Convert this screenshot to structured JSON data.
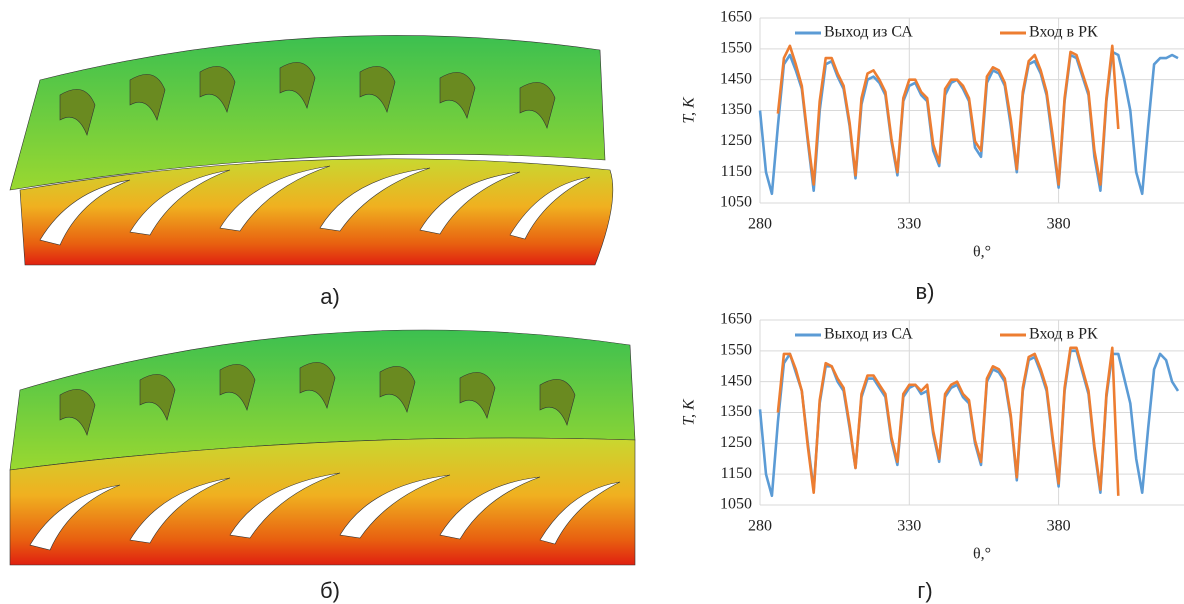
{
  "panel_labels": [
    "а)",
    "в)",
    "б)",
    "г)"
  ],
  "chart_data": [
    {
      "type": "line",
      "y_label": "T, К",
      "x_label": "θ,°",
      "x": [
        280,
        282,
        284,
        286,
        288,
        290,
        292,
        294,
        296,
        298,
        300,
        302,
        304,
        306,
        308,
        310,
        312,
        314,
        316,
        318,
        320,
        322,
        324,
        326,
        328,
        330,
        332,
        334,
        336,
        338,
        340,
        342,
        344,
        346,
        348,
        350,
        352,
        354,
        356,
        358,
        360,
        362,
        364,
        366,
        368,
        370,
        372,
        374,
        376,
        378,
        380,
        382,
        384,
        386,
        388,
        390,
        392,
        394,
        396,
        398,
        400,
        402,
        404,
        406,
        408,
        410,
        412,
        414,
        416,
        418,
        420
      ],
      "xlim": [
        280,
        422
      ],
      "xticks": [
        280,
        330,
        380
      ],
      "ylim": [
        1050,
        1650
      ],
      "yticks": [
        1050,
        1150,
        1250,
        1350,
        1450,
        1550,
        1650
      ],
      "grid": true,
      "legend": "top",
      "series": [
        {
          "name": "Выход из СА",
          "color": "#5b9bd5",
          "values": [
            1350,
            1150,
            1080,
            1300,
            1500,
            1530,
            1480,
            1420,
            1250,
            1090,
            1350,
            1500,
            1510,
            1460,
            1420,
            1300,
            1130,
            1370,
            1450,
            1460,
            1440,
            1400,
            1250,
            1140,
            1380,
            1430,
            1440,
            1400,
            1380,
            1220,
            1170,
            1400,
            1440,
            1450,
            1420,
            1380,
            1230,
            1200,
            1440,
            1480,
            1470,
            1430,
            1300,
            1150,
            1400,
            1500,
            1510,
            1470,
            1400,
            1250,
            1100,
            1380,
            1530,
            1520,
            1460,
            1400,
            1200,
            1090,
            1380,
            1540,
            1530,
            1450,
            1350,
            1150,
            1080,
            1300,
            1500,
            1520,
            1520,
            1530,
            1520
          ]
        },
        {
          "name": "Вход в РК",
          "color": "#ed7d31",
          "values": [
            null,
            null,
            null,
            1340,
            1520,
            1560,
            1500,
            1430,
            1260,
            1110,
            1380,
            1520,
            1520,
            1470,
            1430,
            1310,
            1140,
            1390,
            1470,
            1480,
            1450,
            1410,
            1260,
            1150,
            1390,
            1450,
            1450,
            1410,
            1390,
            1240,
            1180,
            1420,
            1450,
            1450,
            1430,
            1390,
            1250,
            1220,
            1460,
            1490,
            1480,
            1440,
            1320,
            1160,
            1410,
            1510,
            1530,
            1480,
            1410,
            1270,
            1110,
            1390,
            1540,
            1530,
            1470,
            1410,
            1220,
            1110,
            1390,
            1560,
            1290,
            null,
            null,
            null,
            null,
            null,
            null,
            null,
            null,
            null,
            null
          ]
        }
      ]
    },
    {
      "type": "line",
      "y_label": "T, К",
      "x_label": "θ,°",
      "x": [
        280,
        282,
        284,
        286,
        288,
        290,
        292,
        294,
        296,
        298,
        300,
        302,
        304,
        306,
        308,
        310,
        312,
        314,
        316,
        318,
        320,
        322,
        324,
        326,
        328,
        330,
        332,
        334,
        336,
        338,
        340,
        342,
        344,
        346,
        348,
        350,
        352,
        354,
        356,
        358,
        360,
        362,
        364,
        366,
        368,
        370,
        372,
        374,
        376,
        378,
        380,
        382,
        384,
        386,
        388,
        390,
        392,
        394,
        396,
        398,
        400,
        402,
        404,
        406,
        408,
        410,
        412,
        414,
        416,
        418,
        420
      ],
      "xlim": [
        280,
        422
      ],
      "xticks": [
        280,
        330,
        380
      ],
      "ylim": [
        1050,
        1650
      ],
      "yticks": [
        1050,
        1150,
        1250,
        1350,
        1450,
        1550,
        1650
      ],
      "grid": true,
      "legend": "top",
      "series": [
        {
          "name": "Выход из СА",
          "color": "#5b9bd5",
          "values": [
            1360,
            1150,
            1080,
            1320,
            1510,
            1540,
            1480,
            1420,
            1250,
            1100,
            1380,
            1500,
            1500,
            1450,
            1420,
            1300,
            1170,
            1400,
            1460,
            1460,
            1430,
            1400,
            1260,
            1180,
            1400,
            1430,
            1440,
            1410,
            1420,
            1280,
            1190,
            1400,
            1430,
            1440,
            1400,
            1380,
            1250,
            1180,
            1450,
            1490,
            1480,
            1450,
            1330,
            1130,
            1420,
            1520,
            1530,
            1480,
            1420,
            1260,
            1110,
            1420,
            1550,
            1550,
            1480,
            1410,
            1230,
            1090,
            1400,
            1540,
            1540,
            1460,
            1380,
            1200,
            1090,
            1300,
            1490,
            1540,
            1520,
            1450,
            1420
          ]
        },
        {
          "name": "Вход в РК",
          "color": "#ed7d31",
          "values": [
            null,
            null,
            null,
            1350,
            1540,
            1540,
            1490,
            1420,
            1240,
            1090,
            1390,
            1510,
            1500,
            1460,
            1430,
            1310,
            1170,
            1410,
            1470,
            1470,
            1440,
            1410,
            1270,
            1190,
            1410,
            1440,
            1440,
            1420,
            1440,
            1290,
            1200,
            1410,
            1440,
            1450,
            1410,
            1390,
            1260,
            1190,
            1460,
            1500,
            1490,
            1460,
            1340,
            1140,
            1430,
            1530,
            1540,
            1490,
            1430,
            1270,
            1120,
            1430,
            1560,
            1560,
            1490,
            1420,
            1240,
            1100,
            1410,
            1560,
            1080,
            null,
            null,
            null,
            null,
            null,
            null,
            null,
            null,
            null,
            null
          ]
        }
      ]
    }
  ]
}
